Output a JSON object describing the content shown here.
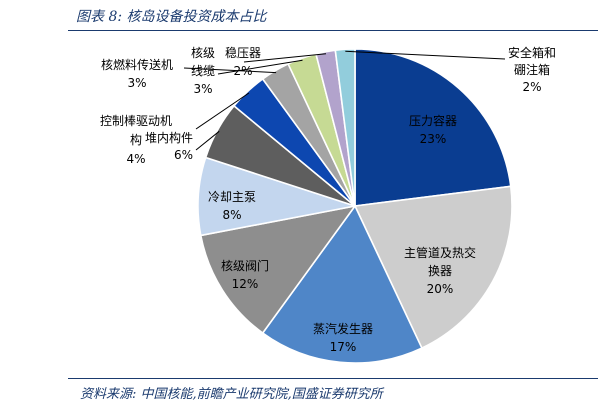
{
  "figure": {
    "title": "图表 8:  核岛设备投资成本占比",
    "source": "资料来源:  中国核能,前瞻产业研究院,国盛证券研究所"
  },
  "colors": {
    "title": "#1a3a6e",
    "rule": "#1a3a6e",
    "label_inside": "#000000"
  },
  "chart_data": {
    "type": "pie",
    "title": "",
    "unit": "%",
    "start": "12 o'clock",
    "direction": "clockwise",
    "slices": [
      {
        "lines": [
          "压力容器"
        ],
        "value": 23,
        "display": "23%",
        "color": "#0a3d91",
        "label": "inside"
      },
      {
        "lines": [
          "主管道及热交",
          "换器"
        ],
        "value": 20,
        "display": "20%",
        "color": "#cdcdcd",
        "label": "inside"
      },
      {
        "lines": [
          "蒸汽发生器"
        ],
        "value": 17,
        "display": "17%",
        "color": "#4f86c8",
        "label": "inside"
      },
      {
        "lines": [
          "核级阀门"
        ],
        "value": 12,
        "display": "12%",
        "color": "#8e8e8e",
        "label": "inside"
      },
      {
        "lines": [
          "冷却主泵"
        ],
        "value": 8,
        "display": "8%",
        "color": "#c3d6ee",
        "label": "inside"
      },
      {
        "lines": [
          "堆内构件"
        ],
        "value": 6,
        "display": "6%",
        "color": "#5e5e5e",
        "label": "outside"
      },
      {
        "lines": [
          "控制棒驱动机",
          "构"
        ],
        "value": 4,
        "display": "4%",
        "color": "#0d47b0",
        "label": "outside"
      },
      {
        "lines": [
          "核燃料传送机"
        ],
        "value": 3,
        "display": "3%",
        "color": "#a4a4a4",
        "label": "outside"
      },
      {
        "lines": [
          "核级",
          "线缆"
        ],
        "value": 3,
        "display": "3%",
        "color": "#c6da94",
        "label": "outside"
      },
      {
        "lines": [
          "稳压器"
        ],
        "value": 2,
        "display": "2%",
        "color": "#b2a3cc",
        "label": "outside"
      },
      {
        "lines": [
          "安全箱和",
          "硼注箱"
        ],
        "value": 2,
        "display": "2%",
        "color": "#92cddc",
        "label": "outside"
      }
    ]
  }
}
